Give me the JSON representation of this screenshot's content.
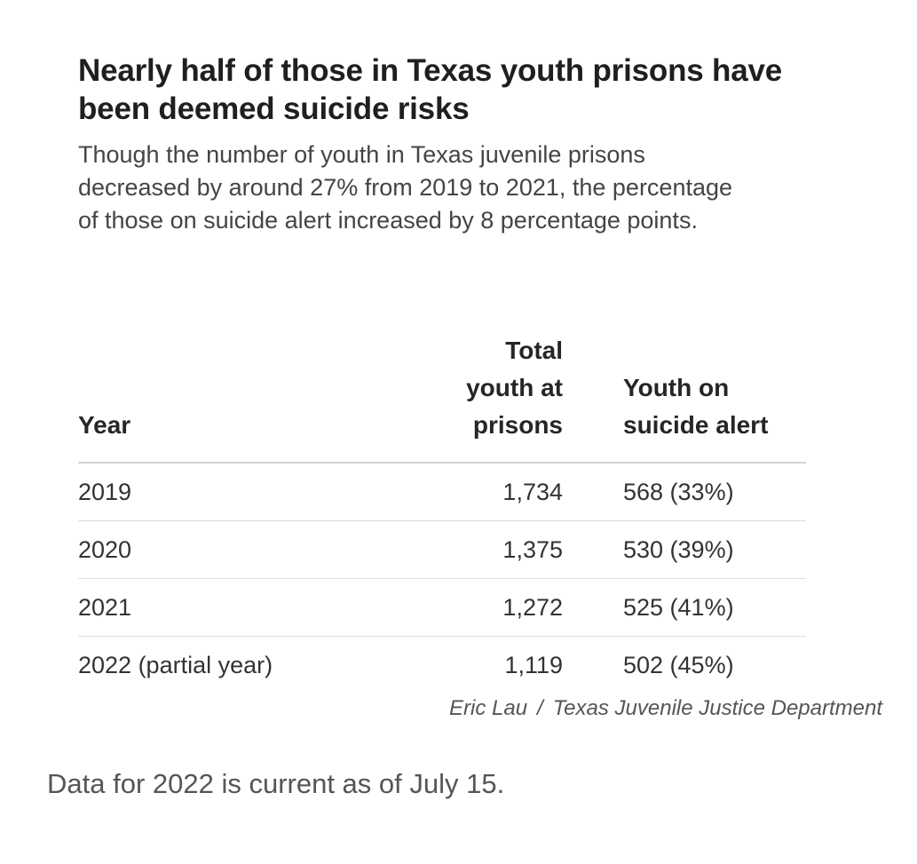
{
  "chart_data": {
    "type": "table",
    "title": "Nearly half of those in Texas youth prisons have been deemed suicide risks",
    "subtitle": "Though the number of youth in Texas juvenile prisons decreased by around 27% from 2019 to 2021, the percentage of those on suicide alert increased by 8 percentage points.",
    "columns": [
      "Year",
      "Total youth at prisons",
      "Youth on suicide alert"
    ],
    "rows": [
      {
        "year": "2019",
        "total": "1,734",
        "alert": "568 (33%)"
      },
      {
        "year": "2020",
        "total": "1,375",
        "alert": "530 (39%)"
      },
      {
        "year": "2021",
        "total": "1,272",
        "alert": "525 (41%)"
      },
      {
        "year": "2022 (partial year)",
        "total": "1,119",
        "alert": "502 (45%)"
      }
    ],
    "values": {
      "total_youth": [
        1734,
        1375,
        1272,
        1119
      ],
      "youth_on_suicide_alert": [
        568,
        530,
        525,
        502
      ],
      "suicide_alert_percent": [
        33,
        39,
        41,
        45
      ]
    },
    "credit": {
      "author": "Eric Lau",
      "separator": "/",
      "source": "Texas Juvenile Justice Department"
    }
  },
  "note": "Data for 2022 is current as of July 15."
}
